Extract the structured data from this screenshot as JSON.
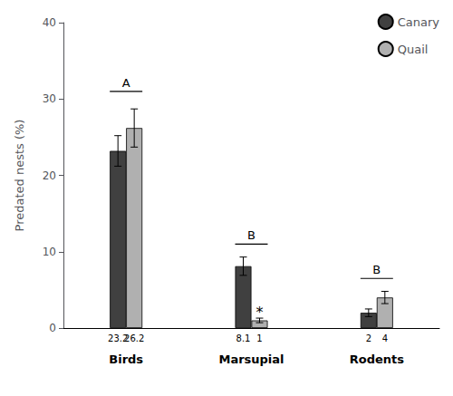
{
  "chart_data": {
    "type": "bar",
    "categories": [
      "Birds",
      "Marsupial",
      "Rodents"
    ],
    "series": [
      {
        "name": "Canary",
        "color": "#404040",
        "values": [
          23.2,
          8.1,
          2.0
        ],
        "errors": [
          2.0,
          1.2,
          0.5
        ]
      },
      {
        "name": "Quail",
        "color": "#b0b0b0",
        "values": [
          26.2,
          1.0,
          4.0
        ],
        "errors": [
          2.5,
          0.3,
          0.8
        ]
      }
    ],
    "ylabel": "Predated nests (%)",
    "ylim": [
      0,
      40
    ],
    "yticks": [
      0,
      10,
      20,
      30,
      40
    ],
    "data_labels": true,
    "legend": "upper right",
    "grid": false,
    "annotations": [
      {
        "text": "A",
        "category": "Birds",
        "y": 31
      },
      {
        "text": "B",
        "category": "Marsupial",
        "y": 11
      },
      {
        "text": "B",
        "category": "Rodents",
        "y": 6.5
      },
      {
        "text": "*",
        "category": "Marsupial",
        "series": "Quail",
        "y": 1.6
      }
    ]
  }
}
